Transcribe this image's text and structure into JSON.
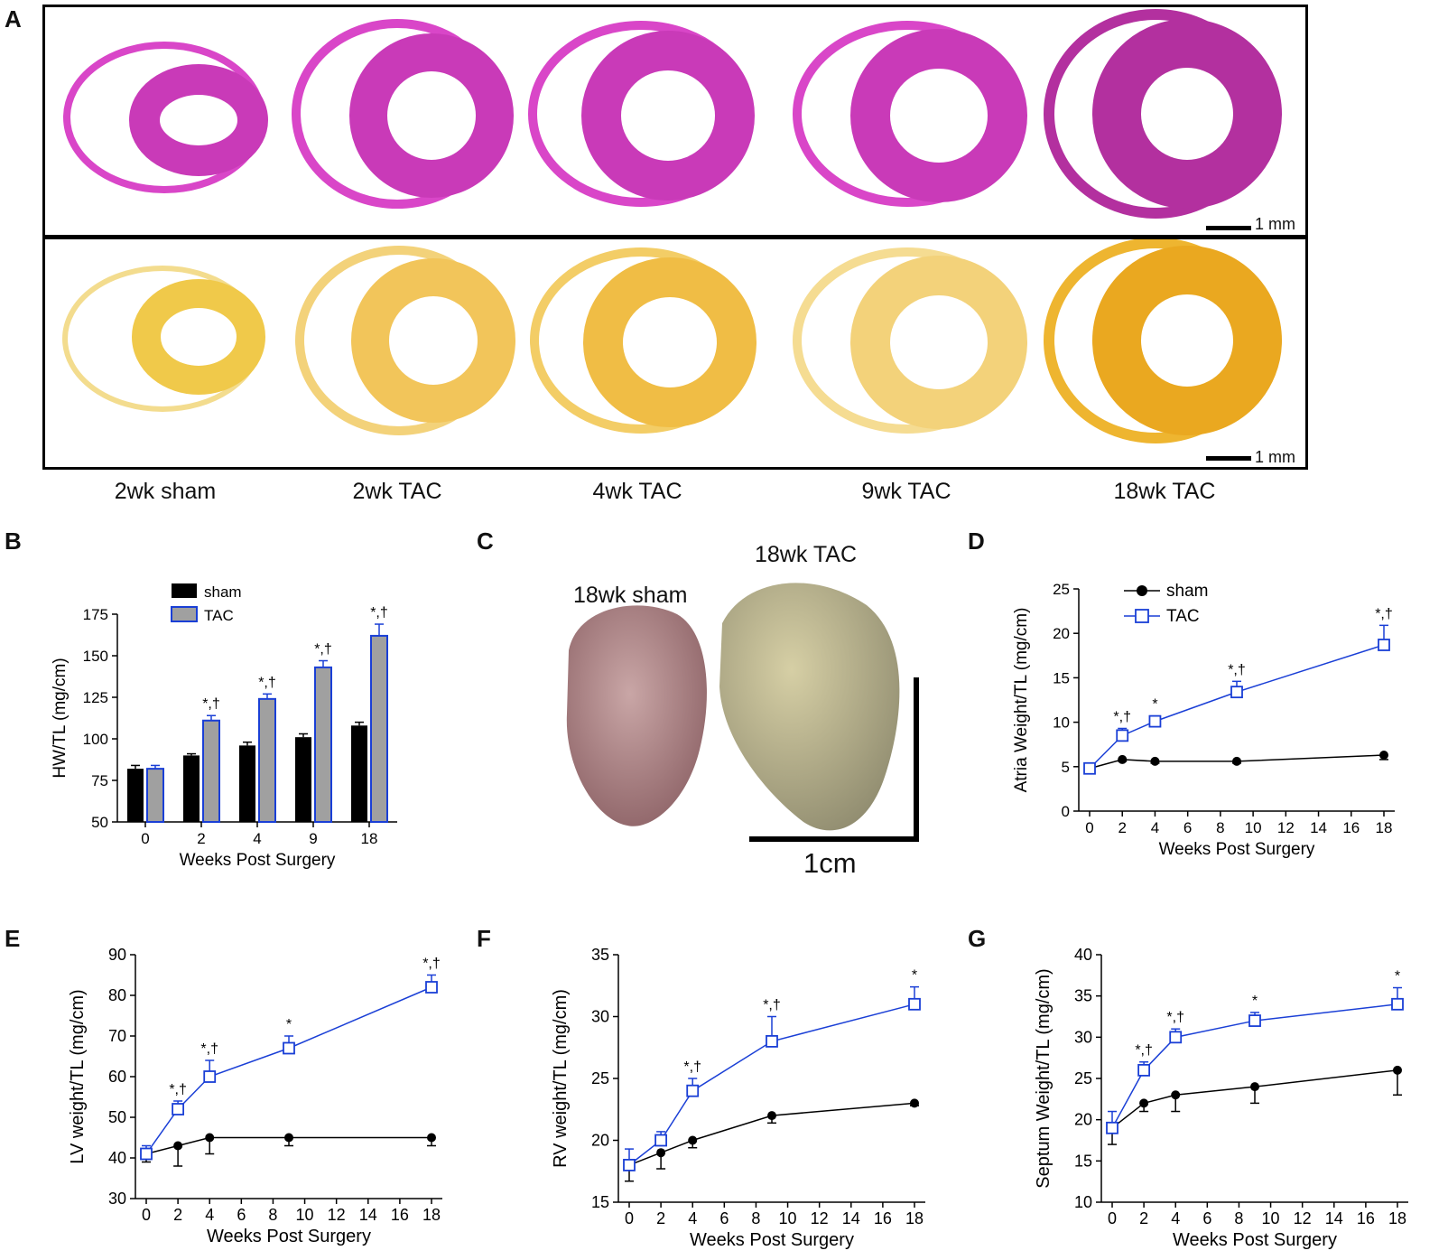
{
  "panels": {
    "A": "A",
    "B": "B",
    "C": "C",
    "D": "D",
    "E": "E",
    "F": "F",
    "G": "G"
  },
  "histology": {
    "conditions": [
      "2wk sham",
      "2wk TAC",
      "4wk TAC",
      "9wk TAC",
      "18wk TAC"
    ],
    "scale_bar_top": "1 mm",
    "scale_bar_bottom": "1 mm",
    "colors": {
      "he_stain": "#d946c8",
      "picro_stain": "#f2c53d"
    }
  },
  "photo": {
    "label_sham": "18wk sham",
    "label_tac": "18wk TAC",
    "scale_label": "1cm"
  },
  "colors": {
    "sham": "#000000",
    "tac": "#1a3fd6",
    "bar_tac_fill": "#a0a0a0"
  },
  "chart_data": [
    {
      "id": "B",
      "type": "bar",
      "ylabel": "HW/TL (mg/cm)",
      "xlabel": "Weeks Post Surgery",
      "categories": [
        "0",
        "2",
        "4",
        "9",
        "18"
      ],
      "ylim": [
        50,
        175
      ],
      "yticks": [
        "50",
        "75",
        "100",
        "125",
        "150",
        "175"
      ],
      "legend": [
        "sham",
        "TAC"
      ],
      "series": [
        {
          "name": "sham",
          "values": [
            82,
            90,
            96,
            101,
            108
          ],
          "err": [
            2,
            1,
            2,
            2,
            2
          ]
        },
        {
          "name": "TAC",
          "values": [
            82,
            111,
            124,
            143,
            162
          ],
          "err": [
            2,
            3,
            3,
            4,
            7
          ]
        }
      ],
      "annotations": [
        "",
        "*,†",
        "*,†",
        "*,†",
        "*,†"
      ]
    },
    {
      "id": "D",
      "type": "line",
      "ylabel": "Atria Weight/TL (mg/cm)",
      "xlabel": "Weeks Post Surgery",
      "x": [
        0,
        2,
        4,
        9,
        18
      ],
      "xlim": [
        0,
        18
      ],
      "xticks": [
        "0",
        "2",
        "4",
        "6",
        "8",
        "10",
        "12",
        "14",
        "16",
        "18"
      ],
      "ylim": [
        0,
        25
      ],
      "yticks": [
        "0",
        "5",
        "10",
        "15",
        "20",
        "25"
      ],
      "legend": [
        "sham",
        "TAC"
      ],
      "series": [
        {
          "name": "sham",
          "values": [
            4.8,
            5.8,
            5.6,
            5.6,
            6.3
          ],
          "err": [
            0.3,
            0.2,
            0.2,
            0.2,
            0.5
          ]
        },
        {
          "name": "TAC",
          "values": [
            4.8,
            8.5,
            10.1,
            13.4,
            18.7
          ],
          "err": [
            0.3,
            0.8,
            0.6,
            1.2,
            2.2
          ]
        }
      ],
      "annotations": [
        "",
        "*,†",
        "*",
        "*,†",
        "*,†"
      ]
    },
    {
      "id": "E",
      "type": "line",
      "ylabel": "LV weight/TL (mg/cm)",
      "xlabel": "Weeks Post Surgery",
      "x": [
        0,
        2,
        4,
        9,
        18
      ],
      "xlim": [
        0,
        18
      ],
      "xticks": [
        "0",
        "2",
        "4",
        "6",
        "8",
        "10",
        "12",
        "14",
        "16",
        "18"
      ],
      "ylim": [
        30,
        90
      ],
      "yticks": [
        "30",
        "40",
        "50",
        "60",
        "70",
        "80",
        "90"
      ],
      "series": [
        {
          "name": "sham",
          "values": [
            41,
            43,
            45,
            45,
            45
          ],
          "err": [
            2,
            5,
            4,
            2,
            2
          ]
        },
        {
          "name": "TAC",
          "values": [
            41,
            52,
            60,
            67,
            82
          ],
          "err": [
            2,
            2,
            4,
            3,
            3
          ]
        }
      ],
      "annotations": [
        "",
        "*,†",
        "*,†",
        "*",
        "*,†"
      ]
    },
    {
      "id": "F",
      "type": "line",
      "ylabel": "RV weight/TL (mg/cm)",
      "xlabel": "Weeks Post Surgery",
      "x": [
        0,
        2,
        4,
        9,
        18
      ],
      "xlim": [
        0,
        18
      ],
      "xticks": [
        "0",
        "2",
        "4",
        "6",
        "8",
        "10",
        "12",
        "14",
        "16",
        "18"
      ],
      "ylim": [
        15,
        35
      ],
      "yticks": [
        "15",
        "20",
        "25",
        "30",
        "35"
      ],
      "series": [
        {
          "name": "sham",
          "values": [
            18,
            19,
            20,
            22,
            23
          ],
          "err": [
            1.3,
            1.3,
            0.6,
            0.6,
            0.2
          ]
        },
        {
          "name": "TAC",
          "values": [
            18,
            20,
            24,
            28,
            31
          ],
          "err": [
            1.3,
            0.7,
            1.0,
            2.0,
            1.4
          ]
        }
      ],
      "annotations": [
        "",
        "",
        "*,†",
        "*,†",
        "*"
      ]
    },
    {
      "id": "G",
      "type": "line",
      "ylabel": "Septum Weight/TL (mg/cm)",
      "xlabel": "Weeks Post Surgery",
      "x": [
        0,
        2,
        4,
        9,
        18
      ],
      "xlim": [
        0,
        18
      ],
      "xticks": [
        "0",
        "2",
        "4",
        "6",
        "8",
        "10",
        "12",
        "14",
        "16",
        "18"
      ],
      "ylim": [
        10,
        40
      ],
      "yticks": [
        "10",
        "15",
        "20",
        "25",
        "30",
        "35",
        "40"
      ],
      "series": [
        {
          "name": "sham",
          "values": [
            19,
            22,
            23,
            24,
            26
          ],
          "err": [
            2,
            1,
            2,
            2,
            3
          ]
        },
        {
          "name": "TAC",
          "values": [
            19,
            26,
            30,
            32,
            34
          ],
          "err": [
            2,
            1,
            1,
            1,
            2
          ]
        }
      ],
      "annotations": [
        "",
        "*,†",
        "*,†",
        "*",
        "*"
      ]
    }
  ]
}
